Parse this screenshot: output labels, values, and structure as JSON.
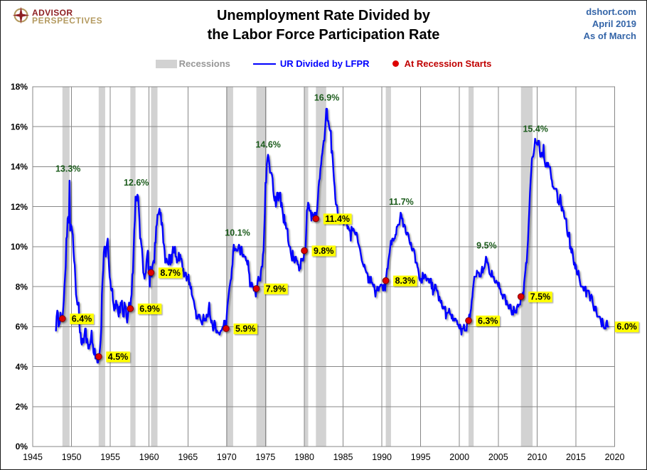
{
  "header": {
    "logo_line1": "ADVISOR",
    "logo_line2": "PERSPECTIVES",
    "title_line1": "Unemployment Rate Divided by",
    "title_line2": "the Labor Force Participation Rate",
    "source_site": "dshort.com",
    "source_date": "April 2019",
    "source_asof": "As of March"
  },
  "legend": {
    "recessions": "Recessions",
    "series": "UR Divided by LFPR",
    "dots": "At Recession Starts"
  },
  "colors": {
    "line": "#0000FE",
    "recession_band": "#D2D2D2",
    "grid": "#878787",
    "plot_border": "#878787",
    "dot_fill": "#DD0000",
    "dot_edge": "#7F0000",
    "peak_label": "#1C5C1C",
    "callout_bg": "#FFFF00",
    "callout_text": "#000000",
    "axis_text": "#000000",
    "legend_gray": "#979797",
    "legend_red": "#C00000",
    "source_blue": "#3465A8",
    "logo_red": "#8E2023",
    "logo_gold": "#B49A60"
  },
  "chart_data": {
    "type": "line",
    "title": "Unemployment Rate Divided by the Labor Force Participation Rate",
    "xlabel": "",
    "ylabel": "",
    "grid": true,
    "legend_position": "top",
    "x_axis": {
      "min": 1945,
      "max": 2020,
      "ticks": [
        1945,
        1950,
        1955,
        1960,
        1965,
        1970,
        1975,
        1980,
        1985,
        1990,
        1995,
        2000,
        2005,
        2010,
        2015,
        2020
      ]
    },
    "y_axis": {
      "min": 0,
      "max": 18,
      "tick_values": [
        0,
        2,
        4,
        6,
        8,
        10,
        12,
        14,
        16,
        18
      ],
      "tick_labels": [
        "0%",
        "2%",
        "4%",
        "6%",
        "8%",
        "10%",
        "12%",
        "14%",
        "16%",
        "18%"
      ]
    },
    "series": [
      {
        "name": "UR Divided by LFPR",
        "frequency": "monthly",
        "start_year": 1948,
        "unit": "%",
        "values": [
          5.8,
          6.5,
          6.8,
          6.7,
          6.0,
          6.1,
          6.2,
          6.7,
          6.5,
          6.3,
          6.4,
          6.8,
          7.3,
          8.0,
          8.5,
          9.0,
          10.4,
          10.5,
          11.4,
          11.5,
          11.2,
          13.3,
          10.8,
          11.1,
          11.0,
          10.8,
          10.6,
          9.8,
          9.3,
          9.1,
          8.4,
          7.6,
          7.4,
          7.1,
          7.1,
          7.2,
          6.2,
          5.7,
          5.7,
          5.2,
          5.1,
          5.4,
          5.2,
          5.2,
          5.6,
          5.9,
          5.9,
          5.2,
          5.4,
          5.2,
          4.9,
          4.9,
          5.1,
          5.1,
          5.4,
          5.8,
          5.2,
          5.1,
          4.7,
          4.6,
          4.9,
          4.4,
          4.4,
          4.6,
          4.2,
          4.2,
          4.5,
          4.6,
          4.9,
          5.3,
          5.9,
          7.6,
          8.3,
          8.8,
          9.7,
          10.0,
          10.0,
          9.5,
          9.9,
          10.2,
          10.4,
          9.7,
          9.0,
          8.5,
          8.3,
          7.9,
          7.8,
          7.9,
          7.3,
          7.1,
          6.8,
          7.1,
          6.9,
          7.3,
          7.1,
          7.1,
          6.7,
          6.5,
          7.0,
          6.7,
          7.2,
          7.2,
          7.3,
          6.8,
          6.5,
          6.5,
          7.2,
          7.0,
          7.0,
          6.5,
          6.2,
          6.5,
          6.8,
          7.2,
          7.0,
          6.9,
          7.4,
          7.6,
          8.6,
          8.7,
          9.8,
          10.8,
          11.3,
          12.5,
          12.5,
          12.3,
          12.6,
          12.5,
          12.0,
          11.3,
          10.4,
          10.4,
          10.1,
          9.9,
          9.4,
          8.7,
          8.6,
          8.4,
          8.6,
          8.7,
          9.3,
          9.6,
          9.8,
          8.9,
          8.7,
          8.0,
          9.0,
          8.7,
          8.5,
          9.0,
          9.2,
          9.3,
          9.2,
          10.2,
          10.2,
          11.0,
          11.1,
          11.6,
          11.6,
          11.7,
          11.9,
          11.6,
          11.7,
          11.1,
          11.2,
          10.9,
          10.2,
          10.1,
          9.8,
          9.2,
          9.4,
          9.4,
          9.2,
          9.2,
          9.1,
          9.6,
          9.4,
          9.1,
          9.6,
          9.2,
          9.7,
          10.0,
          9.7,
          9.7,
          10.0,
          9.5,
          9.5,
          9.2,
          9.3,
          9.3,
          9.7,
          9.3,
          9.6,
          9.4,
          9.4,
          9.2,
          8.8,
          8.9,
          8.5,
          8.6,
          8.7,
          8.7,
          8.3,
          8.5,
          8.4,
          8.6,
          8.1,
          8.2,
          7.9,
          8.0,
          7.6,
          7.5,
          7.4,
          7.3,
          7.1,
          6.9,
          6.8,
          6.4,
          6.5,
          6.4,
          6.6,
          6.5,
          6.6,
          6.4,
          6.3,
          6.2,
          6.1,
          6.3,
          6.6,
          6.3,
          6.3,
          6.4,
          6.3,
          6.6,
          6.5,
          6.5,
          6.9,
          7.2,
          6.6,
          6.4,
          6.2,
          6.3,
          6.1,
          5.8,
          5.9,
          6.3,
          6.2,
          5.9,
          5.7,
          5.8,
          5.7,
          5.7,
          5.7,
          5.6,
          5.7,
          5.8,
          5.8,
          5.9,
          6.0,
          6.0,
          6.3,
          6.3,
          5.9,
          5.9,
          6.5,
          7.0,
          7.3,
          7.6,
          7.9,
          8.1,
          8.3,
          8.4,
          8.9,
          9.1,
          9.8,
          10.1,
          9.8,
          9.9,
          9.9,
          9.8,
          9.8,
          9.8,
          10.0,
          10.1,
          10.0,
          9.6,
          9.9,
          10.0,
          9.6,
          9.5,
          9.6,
          9.5,
          9.5,
          9.5,
          9.3,
          9.3,
          9.1,
          9.3,
          8.8,
          8.6,
          8.0,
          8.2,
          8.0,
          8.2,
          8.0,
          8.0,
          7.8,
          7.8,
          7.8,
          7.5,
          7.9,
          8.0,
          8.3,
          8.5,
          8.3,
          8.3,
          8.3,
          8.8,
          9.0,
          9.0,
          9.6,
          9.8,
          10.8,
          11.7,
          13.2,
          13.2,
          14.1,
          14.4,
          14.6,
          14.4,
          14.1,
          13.7,
          13.7,
          13.7,
          13.6,
          13.4,
          12.8,
          12.5,
          12.3,
          12.5,
          12.0,
          12.3,
          12.7,
          12.7,
          12.3,
          12.5,
          12.7,
          12.7,
          12.0,
          12.2,
          11.9,
          11.6,
          11.2,
          11.6,
          11.1,
          11.2,
          10.9,
          10.9,
          10.9,
          10.3,
          10.1,
          10.0,
          10.0,
          9.7,
          9.5,
          9.3,
          9.8,
          9.3,
          9.5,
          9.2,
          9.3,
          9.5,
          9.3,
          9.3,
          9.1,
          9.1,
          8.8,
          8.9,
          8.9,
          9.4,
          9.3,
          9.4,
          9.3,
          9.4,
          9.8,
          9.9,
          9.9,
          10.8,
          11.8,
          11.9,
          12.2,
          12.1,
          11.8,
          11.8,
          11.8,
          11.3,
          11.7,
          11.6,
          11.6,
          11.3,
          11.7,
          11.7,
          11.4,
          11.6,
          11.9,
          12.4,
          13.0,
          13.3,
          13.4,
          13.9,
          14.1,
          14.5,
          14.7,
          15.0,
          15.3,
          15.3,
          15.8,
          16.3,
          16.9,
          16.9,
          16.3,
          16.3,
          16.1,
          15.9,
          15.8,
          15.8,
          14.7,
          14.8,
          14.4,
          13.8,
          13.3,
          13.0,
          12.4,
          12.1,
          12.1,
          12.0,
          11.5,
          11.2,
          11.6,
          11.6,
          11.3,
          11.5,
          11.2,
          11.3,
          11.2,
          11.1,
          11.2,
          11.3,
          11.2,
          11.4,
          11.1,
          10.9,
          11.0,
          10.9,
          10.8,
          10.8,
          10.3,
          11.0,
          10.9,
          10.8,
          10.9,
          10.8,
          10.7,
          10.6,
          10.7,
          10.7,
          10.5,
          10.2,
          10.1,
          10.0,
          9.9,
          9.7,
          9.5,
          9.3,
          9.2,
          9.1,
          9.0,
          9.1,
          8.9,
          8.8,
          8.7,
          8.7,
          8.6,
          8.2,
          8.5,
          8.2,
          8.2,
          8.5,
          8.2,
          8.2,
          8.1,
          8.0,
          8.1,
          7.8,
          7.5,
          7.8,
          7.8,
          8.0,
          7.8,
          7.8,
          8.0,
          8.0,
          8.1,
          8.1,
          8.1,
          8.0,
          7.8,
          8.1,
          8.1,
          7.8,
          8.3,
          8.6,
          8.9,
          8.9,
          9.3,
          9.5,
          9.7,
          10.0,
          10.3,
          10.1,
          10.4,
          10.4,
          10.3,
          10.4,
          10.4,
          10.6,
          10.6,
          11.0,
          11.0,
          11.1,
          11.1,
          11.1,
          11.4,
          11.7,
          11.6,
          11.4,
          11.4,
          11.0,
          11.1,
          11.1,
          11.0,
          10.7,
          10.6,
          10.7,
          10.7,
          10.6,
          10.4,
          10.2,
          10.1,
          10.2,
          9.9,
          9.8,
          9.9,
          9.9,
          9.8,
          9.6,
          9.2,
          9.2,
          9.2,
          9.0,
          8.9,
          8.7,
          8.4,
          8.3,
          8.4,
          8.2,
          8.2,
          8.7,
          8.6,
          8.4,
          8.5,
          8.6,
          8.5,
          8.3,
          8.4,
          8.4,
          8.4,
          8.2,
          8.2,
          8.4,
          8.4,
          7.9,
          8.2,
          7.6,
          7.8,
          7.8,
          8.1,
          8.1,
          7.9,
          7.8,
          7.8,
          7.6,
          7.3,
          7.5,
          7.3,
          7.2,
          7.3,
          7.0,
          6.9,
          7.0,
          6.9,
          6.9,
          7.0,
          6.4,
          6.6,
          6.7,
          6.7,
          6.7,
          6.9,
          6.7,
          6.6,
          6.6,
          6.4,
          6.6,
          6.3,
          6.4,
          6.3,
          6.4,
          6.4,
          6.3,
          6.3,
          6.1,
          6.1,
          6.0,
          5.9,
          6.1,
          5.9,
          5.6,
          5.9,
          5.9,
          5.9,
          6.1,
          5.8,
          5.8,
          5.8,
          5.8,
          6.3,
          6.3,
          6.3,
          6.6,
          6.4,
          6.7,
          6.9,
          7.3,
          7.5,
          7.9,
          8.2,
          8.5,
          8.5,
          8.5,
          8.5,
          8.8,
          8.7,
          8.7,
          8.7,
          8.5,
          8.5,
          8.5,
          8.8,
          9.0,
          8.7,
          8.9,
          8.9,
          9.0,
          9.2,
          9.5,
          9.4,
          9.2,
          9.2,
          9.0,
          8.7,
          8.6,
          8.6,
          8.5,
          8.8,
          8.5,
          8.5,
          8.5,
          8.3,
          8.2,
          8.2,
          8.3,
          8.2,
          8.2,
          8.0,
          8.2,
          7.9,
          7.9,
          7.7,
          7.6,
          7.6,
          7.4,
          7.6,
          7.6,
          7.6,
          7.4,
          7.1,
          7.3,
          7.1,
          7.1,
          6.9,
          6.9,
          7.1,
          7.1,
          6.8,
          6.6,
          6.8,
          6.6,
          7.0,
          6.8,
          6.7,
          6.8,
          6.7,
          7.0,
          7.1,
          7.0,
          7.1,
          7.1,
          7.1,
          7.5,
          7.6,
          7.4,
          7.7,
          7.6,
          8.2,
          8.5,
          8.8,
          9.2,
          9.2,
          9.8,
          10.3,
          11.1,
          11.9,
          12.7,
          13.3,
          13.8,
          14.4,
          14.5,
          14.5,
          14.7,
          15.0,
          15.4,
          15.2,
          15.2,
          15.1,
          15.1,
          15.3,
          15.3,
          14.8,
          14.5,
          14.5,
          14.7,
          14.7,
          14.5,
          15.1,
          14.4,
          14.2,
          14.0,
          14.0,
          14.2,
          14.0,
          14.2,
          14.0,
          14.0,
          14.0,
          13.7,
          13.4,
          13.3,
          13.0,
          13.0,
          12.9,
          12.9,
          12.9,
          12.9,
          12.9,
          12.7,
          12.2,
          12.2,
          12.1,
          12.4,
          12.6,
          12.2,
          11.8,
          12.0,
          11.8,
          11.8,
          11.5,
          11.4,
          11.4,
          11.4,
          10.9,
          10.6,
          10.5,
          10.7,
          10.7,
          9.9,
          10.0,
          9.7,
          9.9,
          9.7,
          9.4,
          9.1,
          9.2,
          8.9,
          9.1,
          8.8,
          8.6,
          8.6,
          8.8,
          8.5,
          8.3,
          8.1,
          8.0,
          8.0,
          8.0,
          8.0,
          7.8,
          7.8,
          8.0,
          8.0,
          7.5,
          7.8,
          7.8,
          7.8,
          7.8,
          7.6,
          7.3,
          7.5,
          7.6,
          7.5,
          7.2,
          7.0,
          6.8,
          7.0,
          6.8,
          7.0,
          6.7,
          6.5,
          6.5,
          6.5,
          6.5,
          6.5,
          6.4,
          6.2,
          6.0,
          6.4,
          6.2,
          6.0,
          5.9,
          5.9,
          5.9,
          6.2,
          6.3,
          6.0,
          6.0
        ]
      }
    ],
    "recession_bands": [
      [
        1948.83,
        1949.75
      ],
      [
        1953.5,
        1954.33
      ],
      [
        1957.58,
        1958.25
      ],
      [
        1960.25,
        1961.08
      ],
      [
        1969.92,
        1970.83
      ],
      [
        1973.83,
        1975.17
      ],
      [
        1980.0,
        1980.5
      ],
      [
        1981.5,
        1982.83
      ],
      [
        1990.5,
        1991.17
      ],
      [
        2001.17,
        2001.83
      ],
      [
        2007.92,
        2009.42
      ]
    ],
    "recession_start_points": [
      {
        "x": 1948.83,
        "y": 6.4,
        "label": "6.4%"
      },
      {
        "x": 1953.5,
        "y": 4.5,
        "label": "4.5%"
      },
      {
        "x": 1957.58,
        "y": 6.9,
        "label": "6.9%"
      },
      {
        "x": 1960.25,
        "y": 8.7,
        "label": "8.7%"
      },
      {
        "x": 1969.92,
        "y": 5.9,
        "label": "5.9%"
      },
      {
        "x": 1973.83,
        "y": 7.9,
        "label": "7.9%"
      },
      {
        "x": 1980.0,
        "y": 9.8,
        "label": "9.8%"
      },
      {
        "x": 1981.5,
        "y": 11.4,
        "label": "11.4%"
      },
      {
        "x": 1990.5,
        "y": 8.3,
        "label": "8.3%"
      },
      {
        "x": 2001.17,
        "y": 6.3,
        "label": "6.3%"
      },
      {
        "x": 2007.92,
        "y": 7.5,
        "label": "7.5%"
      }
    ],
    "peak_labels": [
      {
        "x": 1949.55,
        "y": 13.75,
        "label": "13.3%"
      },
      {
        "x": 1958.35,
        "y": 13.05,
        "label": "12.6%"
      },
      {
        "x": 1971.4,
        "y": 10.55,
        "label": "10.1%"
      },
      {
        "x": 1975.35,
        "y": 14.95,
        "label": "14.6%"
      },
      {
        "x": 1982.9,
        "y": 17.3,
        "label": "16.9%"
      },
      {
        "x": 1992.5,
        "y": 12.1,
        "label": "11.7%"
      },
      {
        "x": 2003.5,
        "y": 9.9,
        "label": "9.5%"
      },
      {
        "x": 2009.8,
        "y": 15.75,
        "label": "15.4%"
      }
    ],
    "end_label": {
      "x": 2019.17,
      "y": 6.0,
      "label": "6.0%"
    }
  }
}
